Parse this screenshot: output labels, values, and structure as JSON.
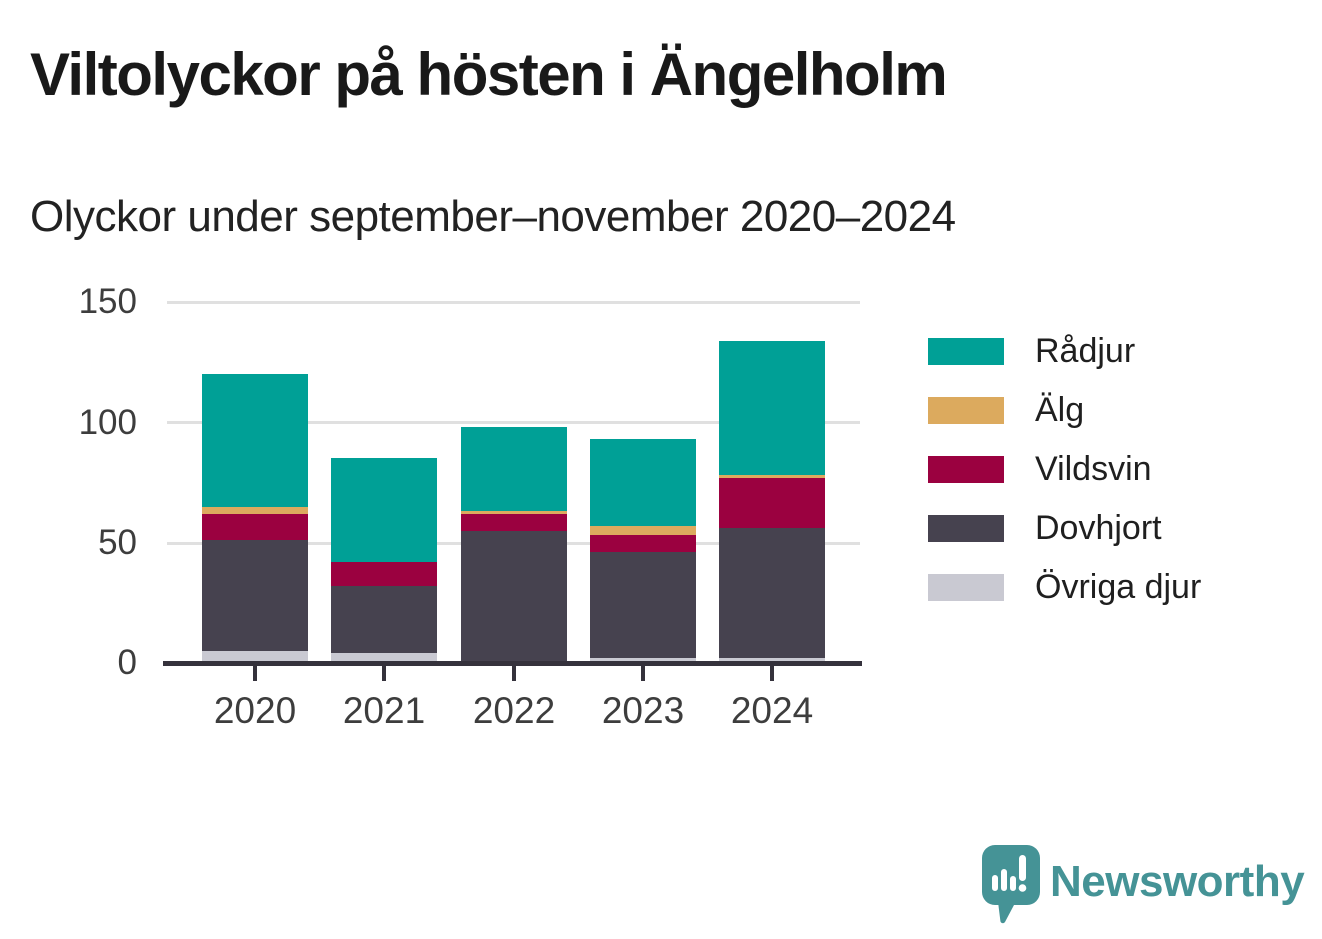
{
  "header": {
    "title": "Viltolyckor på hösten i Ängelholm",
    "subtitle": "Olyckor under september–november 2020–2024"
  },
  "chart_data": {
    "type": "bar",
    "stacked": true,
    "title": "Viltolyckor på hösten i Ängelholm",
    "subtitle": "Olyckor under september–november 2020–2024",
    "categories": [
      "2020",
      "2021",
      "2022",
      "2023",
      "2024"
    ],
    "series": [
      {
        "name": "Rådjur",
        "color": "#00a096",
        "values": [
          55,
          43,
          35,
          36,
          56
        ]
      },
      {
        "name": "Älg",
        "color": "#dcaa5e",
        "values": [
          3,
          0,
          1,
          4,
          1
        ]
      },
      {
        "name": "Vildsvin",
        "color": "#9b0140",
        "values": [
          11,
          10,
          7,
          7,
          21
        ]
      },
      {
        "name": "Dovhjort",
        "color": "#46424f",
        "values": [
          46,
          28,
          54,
          44,
          54
        ]
      },
      {
        "name": "Övriga djur",
        "color": "#c9c9d2",
        "values": [
          5,
          4,
          1,
          2,
          2
        ]
      }
    ],
    "totals": [
      120,
      85,
      98,
      93,
      134
    ],
    "xlabel": "",
    "ylabel": "",
    "ylim": [
      0,
      150
    ],
    "yticks": [
      0,
      50,
      100,
      150
    ],
    "grid": true,
    "legend_position": "right"
  },
  "colors": {
    "axis": "#35323c",
    "gridline": "#e0e0e0",
    "text": "#1a1a1a",
    "brand_teal": "#459396"
  },
  "footer": {
    "brand": "Newsworthy",
    "logo_icon": "bar-chart-speech-bubble-icon"
  }
}
